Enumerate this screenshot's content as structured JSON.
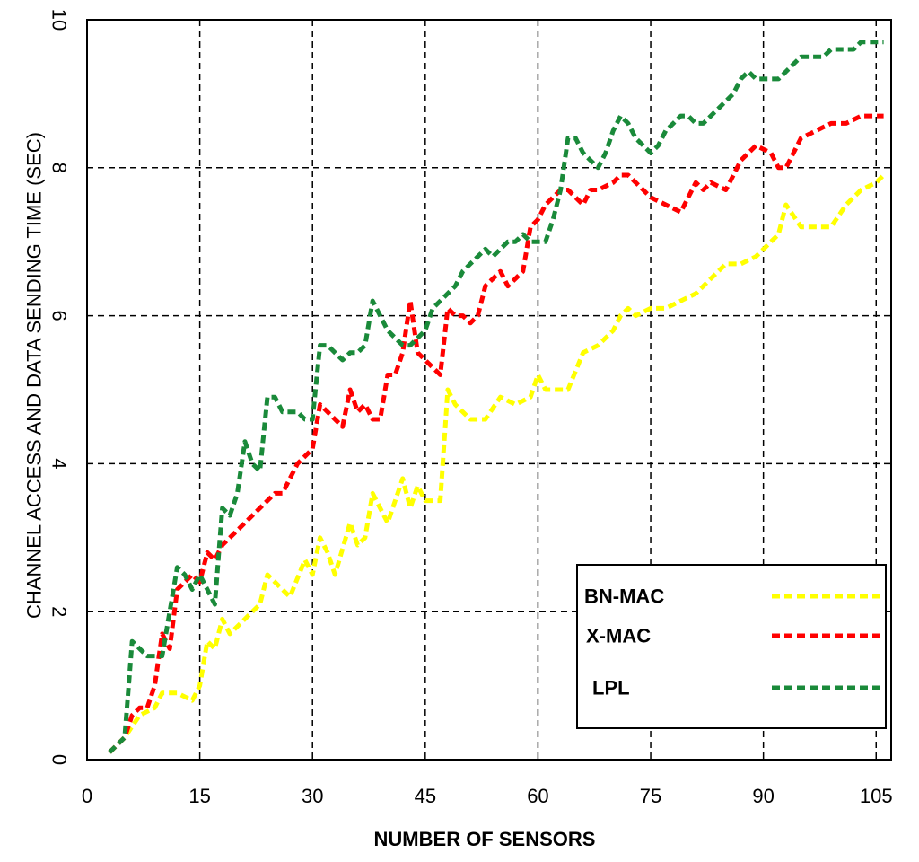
{
  "chart_data": {
    "type": "line",
    "xlabel": "NUMBER OF SENSORS",
    "ylabel": "CHANNEL ACCESS AND DATA SENDING TIME (SEC)",
    "xlim": [
      0,
      107
    ],
    "ylim": [
      0,
      10
    ],
    "x_ticks": [
      "0",
      "15",
      "30",
      "45",
      "60",
      "75",
      "90",
      "105"
    ],
    "y_ticks": [
      "0",
      "2",
      "4",
      "6",
      "8",
      "10"
    ],
    "grid": true,
    "legend_position": "bottom-right",
    "series": [
      {
        "name": "BN-MAC",
        "color": "#ffff00",
        "x": [
          3,
          5,
          7,
          9,
          10,
          12,
          14,
          15,
          16,
          17,
          18,
          19,
          21,
          23,
          24,
          26,
          27,
          29,
          30,
          31,
          32,
          33,
          35,
          36,
          37,
          38,
          40,
          42,
          43,
          44,
          45,
          47,
          48,
          49,
          51,
          53,
          55,
          57,
          59,
          60,
          61,
          63,
          64,
          66,
          68,
          70,
          71,
          72,
          73,
          75,
          77,
          79,
          81,
          83,
          85,
          87,
          89,
          91,
          92,
          93,
          95,
          97,
          99,
          101,
          103,
          105,
          106
        ],
        "y": [
          0.1,
          0.3,
          0.6,
          0.7,
          0.9,
          0.9,
          0.8,
          1.0,
          1.6,
          1.5,
          1.9,
          1.7,
          1.9,
          2.1,
          2.5,
          2.3,
          2.2,
          2.7,
          2.5,
          3.0,
          2.8,
          2.5,
          3.2,
          2.9,
          3.0,
          3.6,
          3.2,
          3.8,
          3.4,
          3.7,
          3.5,
          3.5,
          5.0,
          4.8,
          4.6,
          4.6,
          4.9,
          4.8,
          4.9,
          5.2,
          5.0,
          5.0,
          5.0,
          5.5,
          5.6,
          5.8,
          6.0,
          6.1,
          6.0,
          6.1,
          6.1,
          6.2,
          6.3,
          6.5,
          6.7,
          6.7,
          6.8,
          7.0,
          7.1,
          7.5,
          7.2,
          7.2,
          7.2,
          7.5,
          7.7,
          7.8,
          7.9
        ]
      },
      {
        "name": "X-MAC",
        "color": "#ff0000",
        "x": [
          3,
          5,
          6,
          7,
          8,
          9,
          10,
          11,
          12,
          13,
          14,
          15,
          16,
          17,
          18,
          19,
          20,
          21,
          22,
          23,
          24,
          25,
          26,
          27,
          28,
          29,
          30,
          31,
          32,
          33,
          34,
          35,
          36,
          37,
          38,
          39,
          40,
          41,
          42,
          43,
          44,
          45,
          46,
          47,
          48,
          49,
          50,
          51,
          52,
          53,
          54,
          55,
          56,
          57,
          58,
          59,
          60,
          61,
          62,
          63,
          64,
          65,
          66,
          67,
          68,
          70,
          71,
          72,
          73,
          74,
          75,
          77,
          79,
          81,
          82,
          83,
          85,
          87,
          89,
          91,
          92,
          93,
          95,
          97,
          99,
          101,
          103,
          105,
          106
        ],
        "y": [
          0.1,
          0.3,
          0.6,
          0.7,
          0.7,
          1.0,
          1.7,
          1.5,
          2.3,
          2.4,
          2.5,
          2.4,
          2.8,
          2.7,
          2.9,
          3.0,
          3.1,
          3.2,
          3.3,
          3.4,
          3.5,
          3.6,
          3.6,
          3.8,
          4.0,
          4.1,
          4.2,
          4.8,
          4.7,
          4.6,
          4.5,
          5.0,
          4.7,
          4.8,
          4.6,
          4.6,
          5.2,
          5.2,
          5.5,
          6.2,
          5.5,
          5.4,
          5.3,
          5.2,
          6.1,
          6.0,
          6.0,
          5.9,
          6.0,
          6.4,
          6.5,
          6.6,
          6.4,
          6.5,
          6.6,
          7.2,
          7.3,
          7.5,
          7.6,
          7.7,
          7.7,
          7.6,
          7.5,
          7.7,
          7.7,
          7.8,
          7.9,
          7.9,
          7.8,
          7.7,
          7.6,
          7.5,
          7.4,
          7.8,
          7.7,
          7.8,
          7.7,
          8.1,
          8.3,
          8.2,
          8.0,
          8.0,
          8.4,
          8.5,
          8.6,
          8.6,
          8.7,
          8.7,
          8.7
        ]
      },
      {
        "name": "LPL",
        "color": "#1a8a3a",
        "x": [
          3,
          5,
          6,
          7,
          8,
          9,
          10,
          11,
          12,
          13,
          14,
          15,
          16,
          17,
          18,
          19,
          20,
          21,
          22,
          23,
          24,
          25,
          26,
          27,
          28,
          29,
          30,
          31,
          32,
          33,
          34,
          35,
          36,
          37,
          38,
          39,
          40,
          41,
          42,
          43,
          44,
          45,
          46,
          47,
          48,
          49,
          50,
          51,
          52,
          53,
          54,
          55,
          56,
          57,
          58,
          59,
          60,
          61,
          62,
          63,
          64,
          65,
          66,
          67,
          68,
          69,
          70,
          71,
          72,
          73,
          74,
          75,
          76,
          77,
          78,
          79,
          80,
          81,
          82,
          83,
          84,
          85,
          86,
          87,
          88,
          89,
          90,
          91,
          92,
          93,
          94,
          95,
          96,
          97,
          98,
          99,
          100,
          101,
          102,
          103,
          104,
          105,
          106
        ],
        "y": [
          0.1,
          0.3,
          1.6,
          1.5,
          1.4,
          1.4,
          1.4,
          2.0,
          2.6,
          2.5,
          2.3,
          2.5,
          2.3,
          2.1,
          3.4,
          3.3,
          3.6,
          4.3,
          4.0,
          3.9,
          4.9,
          4.9,
          4.7,
          4.7,
          4.7,
          4.6,
          4.6,
          5.6,
          5.6,
          5.5,
          5.4,
          5.5,
          5.5,
          5.6,
          6.2,
          6.0,
          5.8,
          5.7,
          5.6,
          5.6,
          5.7,
          5.8,
          6.1,
          6.2,
          6.3,
          6.4,
          6.6,
          6.7,
          6.8,
          6.9,
          6.8,
          6.9,
          7.0,
          7.0,
          7.1,
          7.0,
          7.0,
          7.0,
          7.3,
          7.7,
          8.4,
          8.4,
          8.2,
          8.1,
          8.0,
          8.2,
          8.5,
          8.7,
          8.6,
          8.4,
          8.3,
          8.2,
          8.3,
          8.5,
          8.6,
          8.7,
          8.7,
          8.6,
          8.6,
          8.7,
          8.8,
          8.9,
          9.0,
          9.2,
          9.3,
          9.2,
          9.2,
          9.2,
          9.2,
          9.3,
          9.4,
          9.5,
          9.5,
          9.5,
          9.5,
          9.6,
          9.6,
          9.6,
          9.6,
          9.7,
          9.7,
          9.7,
          9.7
        ]
      }
    ]
  }
}
